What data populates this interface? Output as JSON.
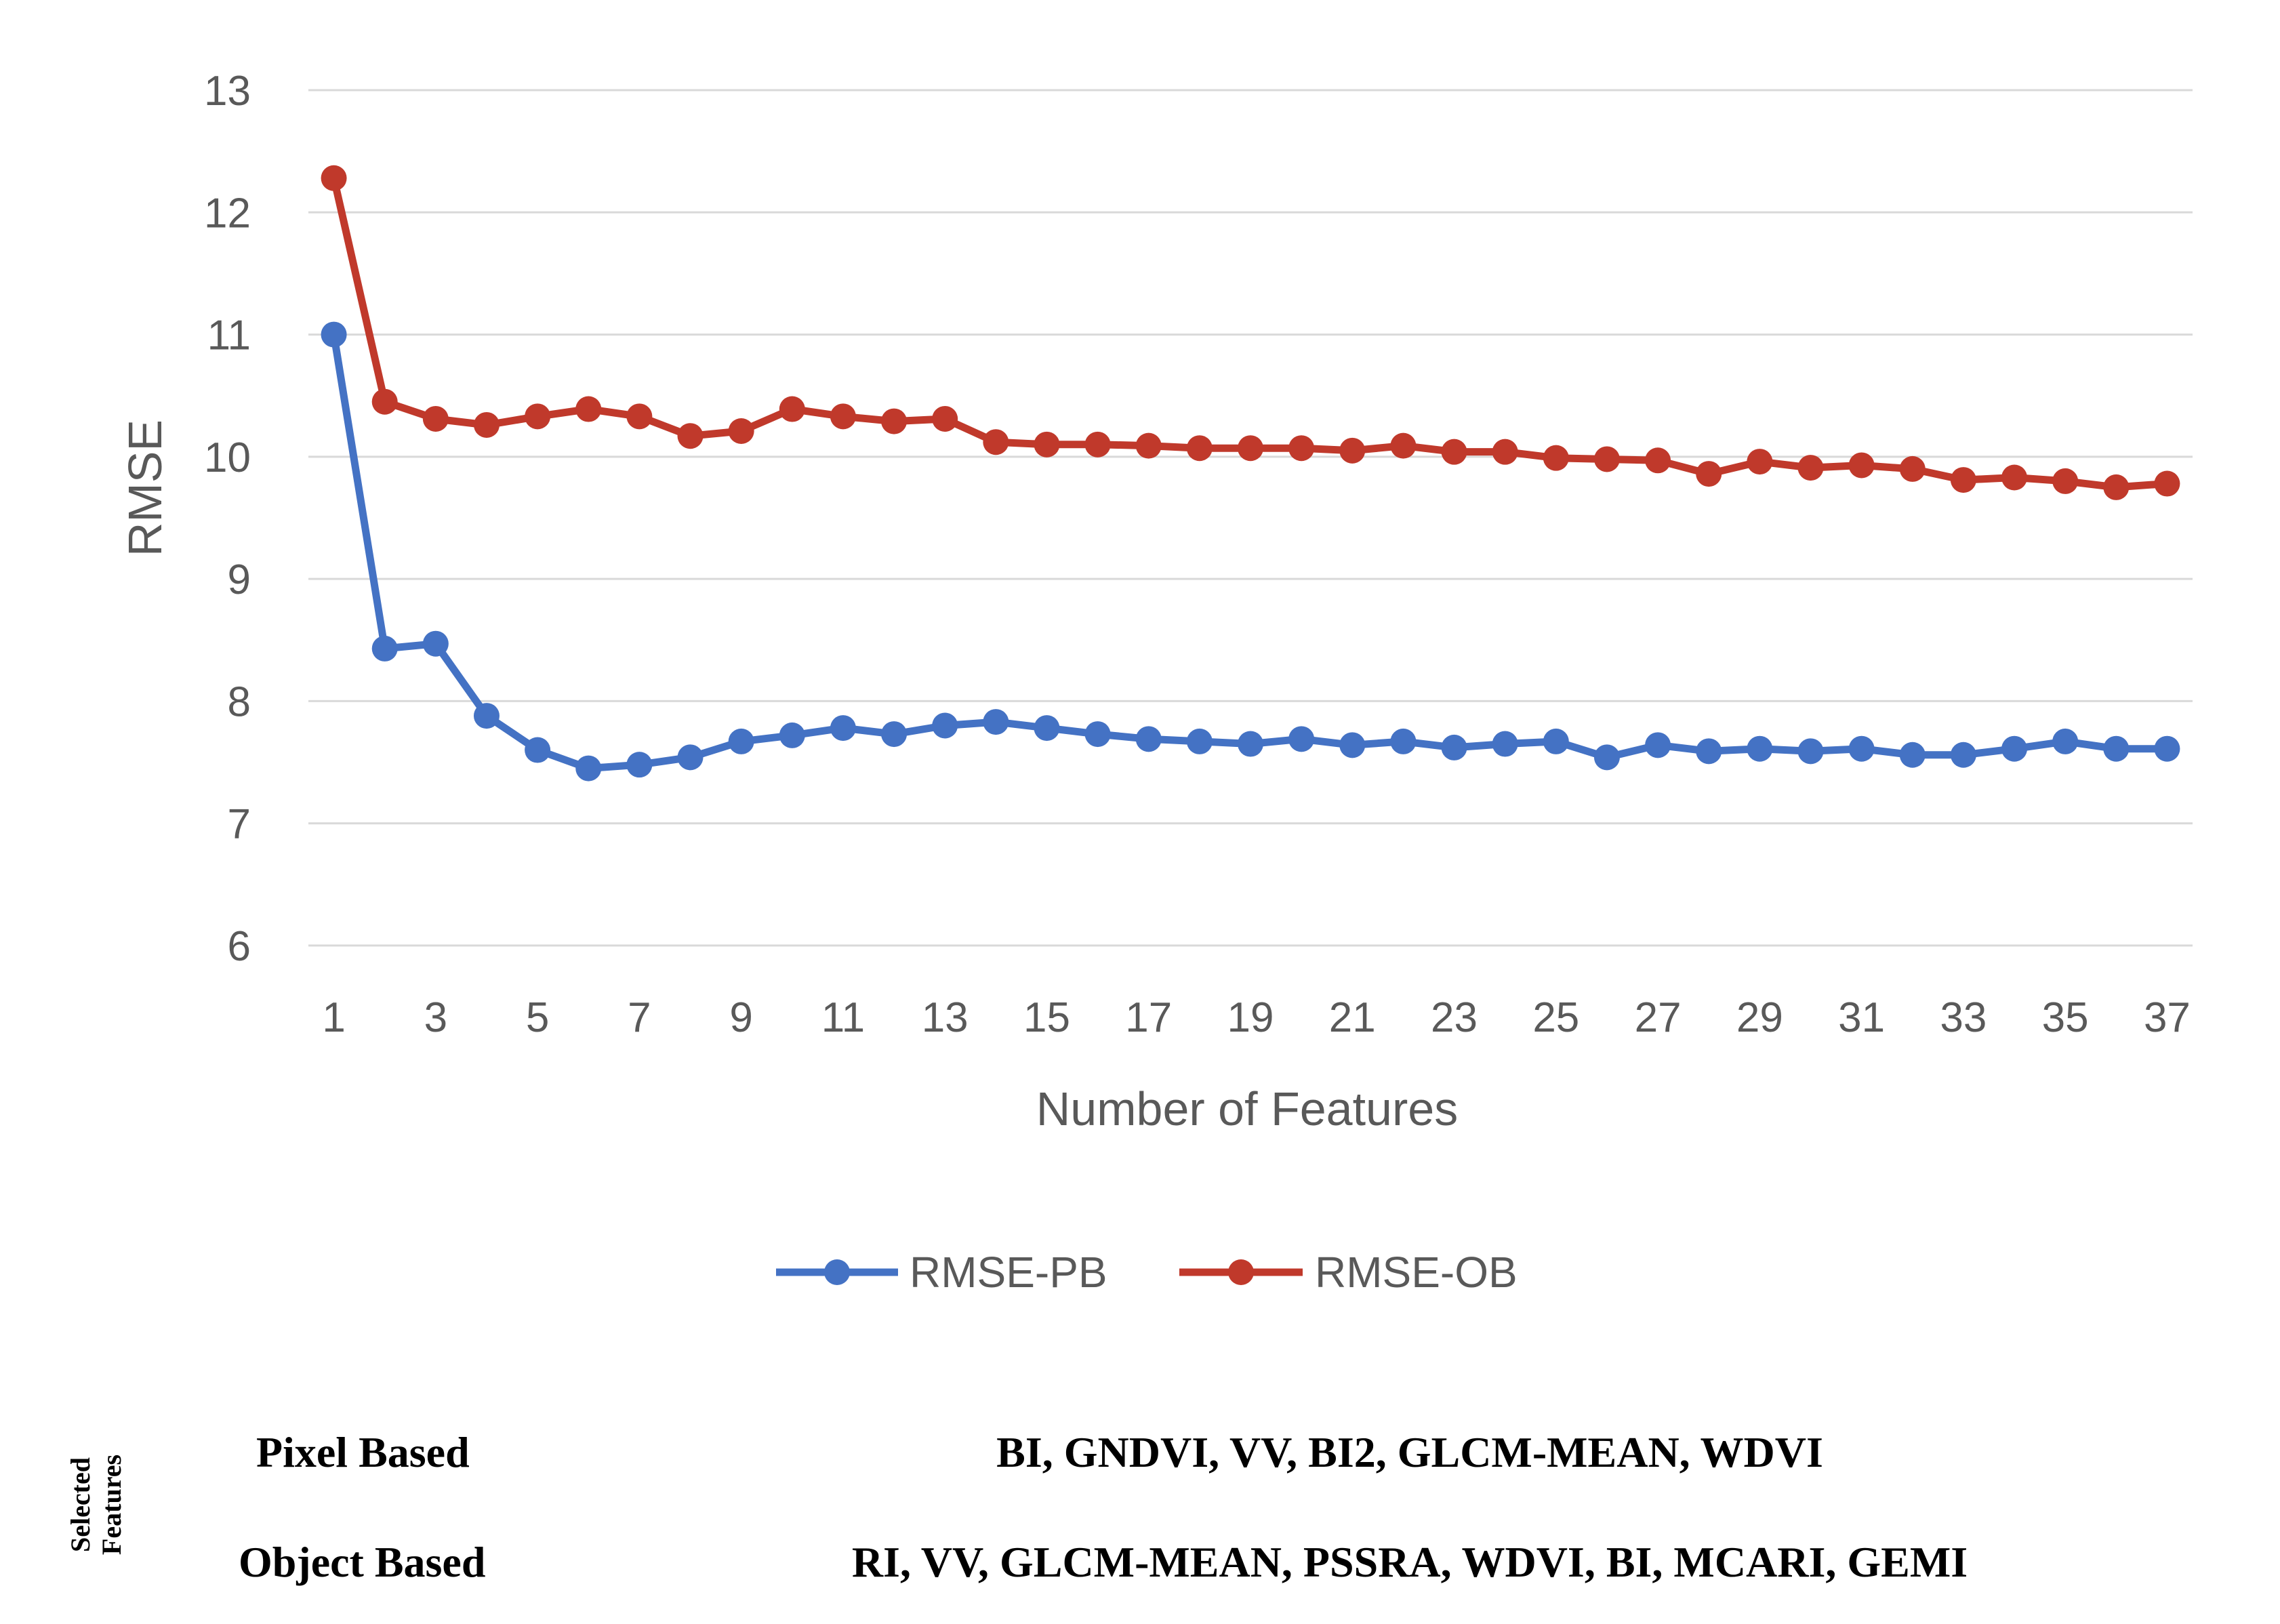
{
  "chart_data": {
    "type": "line",
    "title": "",
    "xlabel": "Number of Features",
    "ylabel": "RMSE",
    "ylim": [
      6,
      13
    ],
    "yticks": [
      "6",
      "7",
      "8",
      "9",
      "10",
      "11",
      "12",
      "13"
    ],
    "xticks": [
      "1",
      "3",
      "5",
      "7",
      "9",
      "11",
      "13",
      "15",
      "17",
      "19",
      "21",
      "23",
      "25",
      "27",
      "29",
      "31",
      "33",
      "35",
      "37"
    ],
    "x": [
      1,
      2,
      3,
      4,
      5,
      6,
      7,
      8,
      9,
      10,
      11,
      12,
      13,
      14,
      15,
      16,
      17,
      18,
      19,
      20,
      21,
      22,
      23,
      24,
      25,
      26,
      27,
      28,
      29,
      30,
      31,
      32,
      33,
      34,
      35,
      36,
      37
    ],
    "grid": true,
    "legend_position": "bottom-center",
    "series": [
      {
        "name": "RMSE-PB",
        "color": "#4472C4",
        "values": [
          11.0,
          8.43,
          8.47,
          7.88,
          7.6,
          7.45,
          7.48,
          7.54,
          7.67,
          7.72,
          7.78,
          7.73,
          7.8,
          7.83,
          7.78,
          7.73,
          7.69,
          7.67,
          7.65,
          7.69,
          7.64,
          7.67,
          7.62,
          7.65,
          7.67,
          7.54,
          7.64,
          7.59,
          7.61,
          7.59,
          7.61,
          7.56,
          7.56,
          7.61,
          7.67,
          7.61,
          7.61
        ]
      },
      {
        "name": "RMSE-OB",
        "color": "#C0392B",
        "values": [
          12.28,
          10.45,
          10.31,
          10.26,
          10.33,
          10.39,
          10.33,
          10.17,
          10.21,
          10.39,
          10.33,
          10.29,
          10.31,
          10.12,
          10.1,
          10.1,
          10.09,
          10.07,
          10.07,
          10.07,
          10.05,
          10.09,
          10.04,
          10.04,
          9.99,
          9.98,
          9.97,
          9.86,
          9.96,
          9.91,
          9.93,
          9.9,
          9.81,
          9.83,
          9.8,
          9.75,
          9.78
        ]
      }
    ]
  },
  "features_table": {
    "heading_line1": "Selected",
    "heading_line2": "Features",
    "rows": [
      {
        "type": "Pixel Based",
        "features": "BI, GNDVI, VV, BI2, GLCM-MEAN, WDVI"
      },
      {
        "type": "Object Based",
        "features": "RI, VV, GLCM-MEAN, PSSRA, WDVI, BI, MCARI, GEMI"
      }
    ]
  }
}
